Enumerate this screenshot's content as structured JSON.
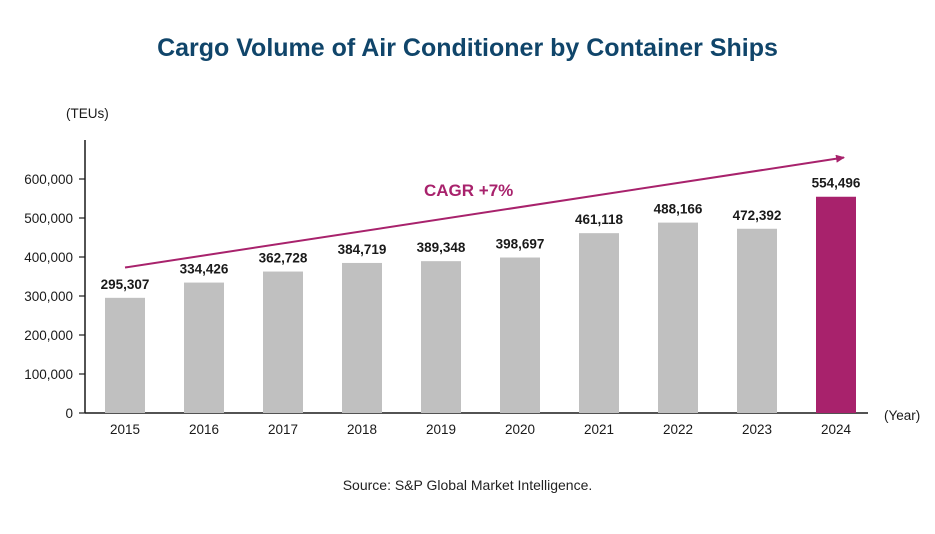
{
  "chart_data": {
    "type": "bar",
    "title": "Cargo Volume of Air Conditioner by Container Ships",
    "ylabel": "(TEUs)",
    "xlabel": "(Year)",
    "categories": [
      "2015",
      "2016",
      "2017",
      "2018",
      "2019",
      "2020",
      "2021",
      "2022",
      "2023",
      "2024"
    ],
    "values": [
      295307,
      334426,
      362728,
      384719,
      389348,
      398697,
      461118,
      488166,
      472392,
      554496
    ],
    "value_labels": [
      "295,307",
      "334,426",
      "362,728",
      "384,719",
      "389,348",
      "398,697",
      "461,118",
      "488,166",
      "472,392",
      "554,496"
    ],
    "ylim": [
      0,
      700000
    ],
    "yticks": [
      0,
      100000,
      200000,
      300000,
      400000,
      500000,
      600000
    ],
    "ytick_labels": [
      "0",
      "100,000",
      "200,000",
      "300,000",
      "400,000",
      "500,000",
      "600,000"
    ],
    "grid": false,
    "legend": "none",
    "annotation": {
      "text": "CAGR +7%",
      "arrow_from_value": 373000,
      "arrow_to_value": 655000
    },
    "colors": {
      "bar": "#c0c0c0",
      "highlight_bar": "#a8226c",
      "accent": "#a8226c",
      "axis": "#1a1a1a",
      "title": "#10456a"
    },
    "highlight_index": 9,
    "source": "Source: S&P Global Market Intelligence."
  }
}
